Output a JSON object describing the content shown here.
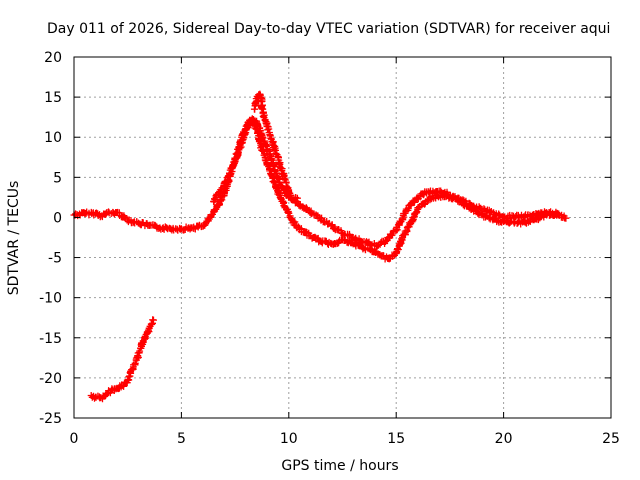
{
  "chart_data": {
    "type": "scatter",
    "title": "Day 011 of 2026, Sidereal Day-to-day VTEC variation (SDTVAR) for receiver aqui",
    "xlabel": "GPS time / hours",
    "ylabel": "SDTVAR / TECUs",
    "xlim": [
      0,
      25
    ],
    "ylim": [
      -25,
      20
    ],
    "xticks": [
      0,
      5,
      10,
      15,
      20,
      25
    ],
    "yticks": [
      -25,
      -20,
      -15,
      -10,
      -5,
      0,
      5,
      10,
      15,
      20
    ],
    "xtick_labels": [
      "0",
      "5",
      "10",
      "15",
      "20",
      "25"
    ],
    "ytick_labels": [
      "-25",
      "-20",
      "-15",
      "-10",
      "-5",
      "0",
      "5",
      "10",
      "15",
      "20"
    ],
    "grid": true,
    "marker": "plus",
    "series_color": "#ff0000",
    "series": [
      {
        "name": "main",
        "x": [
          0.0,
          0.5,
          1.0,
          1.3,
          1.5,
          2.0,
          2.5,
          3.0,
          3.5,
          4.0,
          4.5,
          5.0,
          5.5,
          6.0,
          6.3,
          6.6,
          7.0,
          7.3,
          7.6,
          7.9,
          8.1,
          8.3,
          8.5,
          8.7,
          8.9,
          9.1,
          9.3,
          9.6,
          10.0,
          10.3,
          10.7,
          11.0,
          11.5,
          12.0,
          12.5,
          13.0,
          13.5,
          14.0,
          14.3,
          14.6,
          15.0,
          15.3,
          15.7,
          16.0,
          16.5,
          17.0,
          17.5,
          18.0,
          18.5,
          19.0,
          19.5,
          20.0,
          20.5,
          21.0,
          21.5,
          22.0,
          22.5,
          22.9
        ],
        "y": [
          0.3,
          0.5,
          0.5,
          0.2,
          0.5,
          0.6,
          -0.3,
          -0.7,
          -1.0,
          -1.3,
          -1.4,
          -1.4,
          -1.3,
          -1.1,
          -0.2,
          1.0,
          3.0,
          5.5,
          8.0,
          10.5,
          11.8,
          12.3,
          11.0,
          9.0,
          7.5,
          6.0,
          4.5,
          2.5,
          0.5,
          -1.0,
          -1.8,
          -2.3,
          -3.0,
          -3.3,
          -2.8,
          -3.3,
          -3.8,
          -4.3,
          -4.8,
          -5.1,
          -4.5,
          -2.5,
          -0.5,
          1.0,
          2.3,
          2.7,
          2.5,
          2.0,
          1.0,
          0.3,
          -0.3,
          -0.5,
          -0.7,
          -0.6,
          -0.2,
          0.3,
          0.5,
          -0.1
        ]
      },
      {
        "name": "upper-band",
        "x": [
          6.5,
          7.0,
          7.5,
          7.9,
          8.2,
          8.5,
          8.7,
          9.0,
          9.3,
          9.6,
          10.0,
          12.5,
          13.0,
          13.5,
          14.0,
          14.5,
          15.0,
          15.4,
          15.8,
          16.3,
          17.0,
          17.5,
          18.0,
          18.5,
          19.0,
          20.0,
          21.0,
          22.0,
          22.5
        ],
        "y": [
          2.0,
          4.0,
          7.0,
          10.0,
          12.0,
          12.0,
          10.5,
          8.5,
          6.5,
          4.0,
          2.5,
          -2.0,
          -2.5,
          -3.0,
          -3.5,
          -3.0,
          -1.5,
          0.5,
          2.0,
          3.0,
          3.3,
          2.8,
          2.2,
          1.5,
          1.0,
          0.0,
          0.2,
          0.6,
          0.4
        ]
      },
      {
        "name": "spikes",
        "x": [
          8.4,
          8.5,
          8.6,
          8.7,
          8.8,
          10.1,
          10.2,
          10.4
        ],
        "y": [
          13.5,
          14.5,
          15.3,
          15.0,
          13.0,
          2.5,
          2.2,
          2.4
        ]
      },
      {
        "name": "lower-arc",
        "x": [
          0.8,
          1.0,
          1.2,
          1.4,
          1.6,
          1.8,
          2.0,
          2.3,
          2.5,
          2.7,
          2.9,
          3.1,
          3.3,
          3.5,
          3.7
        ],
        "y": [
          -22.2,
          -22.4,
          -22.5,
          -22.3,
          -21.8,
          -21.5,
          -21.3,
          -21.0,
          -20.3,
          -19.0,
          -17.8,
          -16.3,
          -15.0,
          -13.8,
          -12.8
        ]
      }
    ]
  }
}
